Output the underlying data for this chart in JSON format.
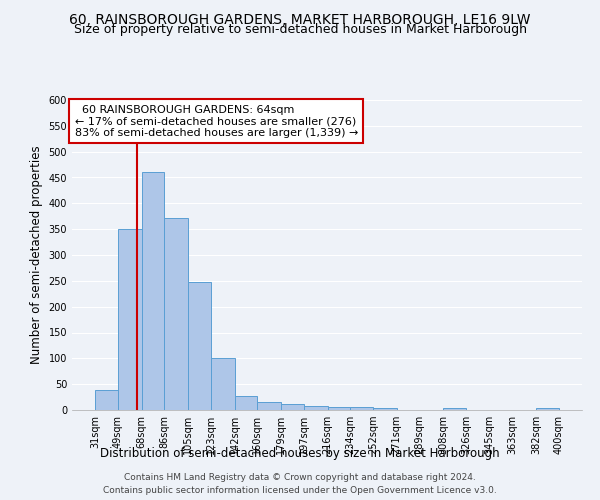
{
  "title": "60, RAINSBOROUGH GARDENS, MARKET HARBOROUGH, LE16 9LW",
  "subtitle": "Size of property relative to semi-detached houses in Market Harborough",
  "xlabel": "Distribution of semi-detached houses by size in Market Harborough",
  "ylabel": "Number of semi-detached properties",
  "footer_line1": "Contains HM Land Registry data © Crown copyright and database right 2024.",
  "footer_line2": "Contains public sector information licensed under the Open Government Licence v3.0.",
  "bar_edges": [
    31,
    49,
    68,
    86,
    105,
    123,
    142,
    160,
    179,
    197,
    216,
    234,
    252,
    271,
    289,
    308,
    326,
    345,
    363,
    382,
    400
  ],
  "bar_heights": [
    38,
    350,
    460,
    372,
    247,
    100,
    28,
    15,
    11,
    7,
    6,
    5,
    4,
    0,
    0,
    4,
    0,
    0,
    0,
    4
  ],
  "bar_color": "#aec6e8",
  "bar_edge_color": "#5a9fd4",
  "property_line_x": 64,
  "property_sqm": 64,
  "property_label": "60 RAINSBOROUGH GARDENS: 64sqm",
  "smaller_pct": 17,
  "smaller_count": 276,
  "larger_pct": 83,
  "larger_count": 1339,
  "ylim": [
    0,
    600
  ],
  "yticks": [
    0,
    50,
    100,
    150,
    200,
    250,
    300,
    350,
    400,
    450,
    500,
    550,
    600
  ],
  "annotation_box_color": "#ffffff",
  "annotation_box_edge_color": "#cc0000",
  "vline_color": "#cc0000",
  "background_color": "#eef2f8",
  "grid_color": "#ffffff",
  "title_fontsize": 10,
  "subtitle_fontsize": 9,
  "xlabel_fontsize": 8.5,
  "ylabel_fontsize": 8.5,
  "tick_fontsize": 7,
  "annotation_fontsize": 8,
  "footer_fontsize": 6.5
}
